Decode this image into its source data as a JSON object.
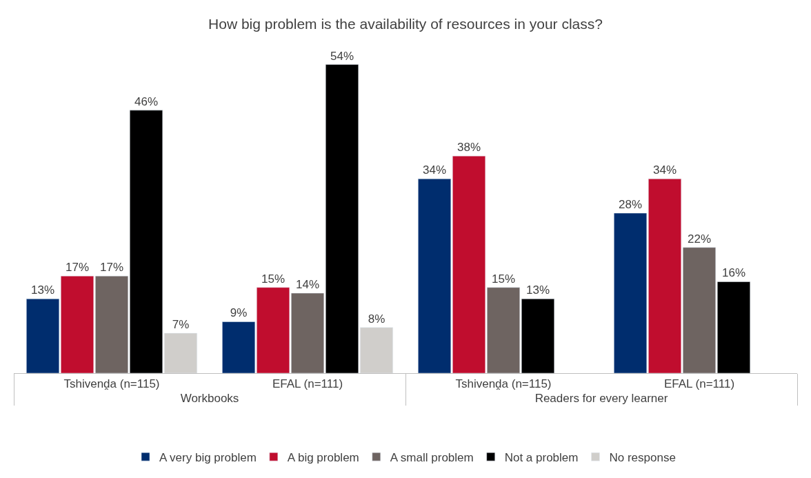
{
  "chart_data": {
    "type": "bar",
    "title": "How big problem is the availability of resources in your class?",
    "categories": [
      "Tshivenḓa (n=115)",
      "EFAL (n=111)",
      "Tshivenḓa (n=115)",
      "EFAL (n=111)"
    ],
    "annotations": [
      "Workbooks",
      "Readers for every learner"
    ],
    "series": [
      {
        "name": "A very big problem",
        "color": "#002d6e",
        "values": [
          13,
          9,
          34,
          28
        ],
        "value_labels": [
          "13%",
          "9%",
          "34%",
          "28%"
        ]
      },
      {
        "name": "A big problem",
        "color": "#c00d2e",
        "values": [
          17,
          15,
          38,
          34
        ],
        "value_labels": [
          "17%",
          "15%",
          "38%",
          "34%"
        ]
      },
      {
        "name": "A small problem",
        "color": "#6e6461",
        "values": [
          17,
          14,
          15,
          22
        ],
        "value_labels": [
          "17%",
          "14%",
          "15%",
          "22%"
        ]
      },
      {
        "name": "Not a problem",
        "color": "#000000",
        "values": [
          46,
          54,
          13,
          16
        ],
        "value_labels": [
          "46%",
          "54%",
          "13%",
          "16%"
        ]
      },
      {
        "name": "No response",
        "color": "#d0cecb",
        "values": [
          7,
          8,
          null,
          null
        ],
        "value_labels": [
          "7%",
          "8%",
          null,
          null
        ]
      }
    ],
    "legend": "bottom"
  }
}
